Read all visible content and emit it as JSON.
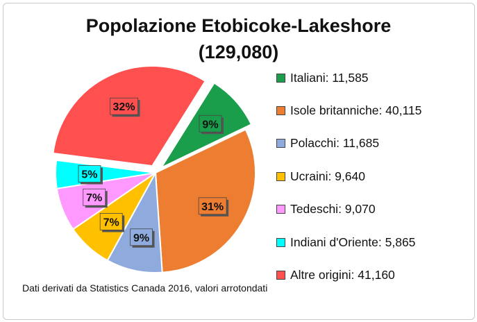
{
  "title_line1": "Popolazione Etobicoke-Lakeshore",
  "title_line2": "(129,080)",
  "footnote": "Dati derivati da Statistics Canada 2016, valori arrotondati",
  "chart_data": {
    "type": "pie",
    "title": "Popolazione Etobicoke-Lakeshore (129,080)",
    "legend_position": "right",
    "start_angle_deg": 32,
    "exploded": [
      "Italiani",
      "Altre origini"
    ],
    "slices": [
      {
        "name": "Italiani",
        "value": 11585,
        "label": "9%",
        "legend": "Italiani: 11,585",
        "color": "#1a9e4b"
      },
      {
        "name": "Isole britanniche",
        "value": 40115,
        "label": "31%",
        "legend": "Isole britanniche: 40,115",
        "color": "#ed7d31"
      },
      {
        "name": "Polacchi",
        "value": 11685,
        "label": "9%",
        "legend": "Polacchi: 11,685",
        "color": "#8faadc"
      },
      {
        "name": "Ucraini",
        "value": 9640,
        "label": "7%",
        "legend": "Ucraini: 9,640",
        "color": "#ffc000"
      },
      {
        "name": "Tedeschi",
        "value": 9070,
        "label": "7%",
        "legend": "Tedeschi: 9,070",
        "color": "#ff99ff"
      },
      {
        "name": "Indiani d'Oriente",
        "value": 5865,
        "label": "5%",
        "legend": "Indiani d'Oriente: 5,865",
        "color": "#00ffff"
      },
      {
        "name": "Altre origini",
        "value": 41160,
        "label": "32%",
        "legend": "Altre origini: 41,160",
        "color": "#ff5050"
      }
    ]
  }
}
